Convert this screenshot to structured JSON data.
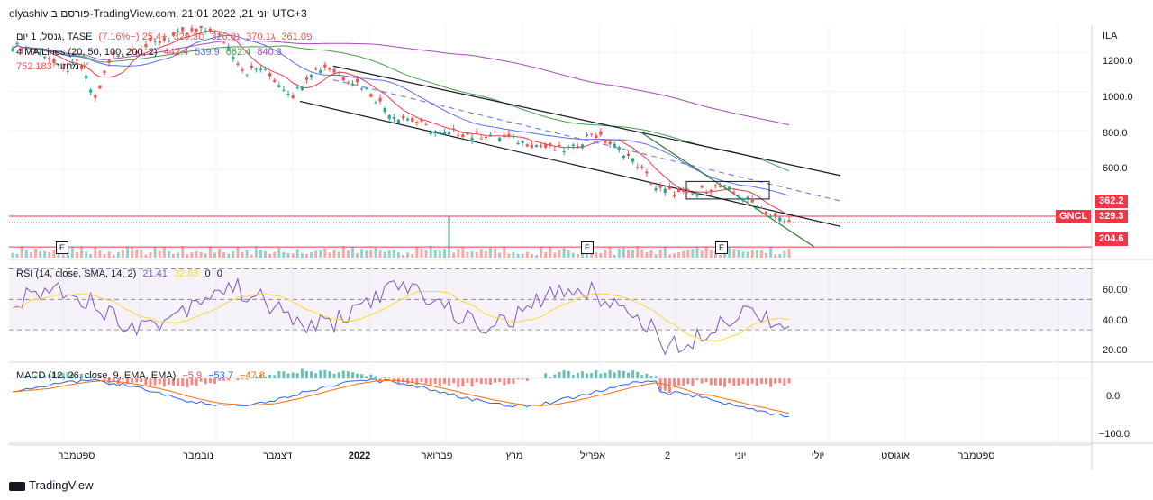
{
  "header": {
    "title": "elyashiv פורסם ב-TradingView.com, 21:01 2022 ,21 יוני UTC+3"
  },
  "legend": {
    "symbol_line": "גנסל, 1 יום, TASE",
    "ohlc": {
      "open": "פ361.0",
      "high": "ג370.1",
      "low": "נ326.0",
      "close": "ס329.3",
      "change": "−25.4 (−7.16%)"
    },
    "ma_title": "4 MA Lines (20, 50, 100, 200, 2)",
    "ma_values": [
      "442.4",
      "539.9",
      "662.4",
      "840.3"
    ],
    "volume_label": "מחזור",
    "volume_value": "752.183K"
  },
  "rsi_legend": {
    "title": "RSI (14, close, SMA, 14, 2)",
    "values": [
      "21.41",
      "32.63",
      "0",
      "0"
    ]
  },
  "macd_legend": {
    "title": "MACD (12, 26, close, 9, EMA, EMA)",
    "values": [
      "−5.9",
      "−53.7",
      "−47.8"
    ]
  },
  "price_axis": {
    "unit": "ILA",
    "ticks": [
      "1200.0",
      "1000.0",
      "800.0",
      "600.0"
    ],
    "tags": [
      {
        "label": "362.2",
        "color": "#f23645"
      },
      {
        "label": "GNCL",
        "color": "#f23645"
      },
      {
        "label": "329.3",
        "color": "#f23645"
      },
      {
        "label": "204.6",
        "color": "#f23645"
      }
    ]
  },
  "rsi_axis": {
    "ticks": [
      "60.00",
      "40.00",
      "20.00"
    ]
  },
  "macd_axis": {
    "ticks": [
      "0.0",
      "−100.0"
    ]
  },
  "time_axis": {
    "ticks": [
      "ספטמבר",
      "נובמבר",
      "דצמבר",
      "2022",
      "פברואר",
      "מרץ",
      "אפריל",
      "2",
      "יוני",
      "יולי",
      "אוגוסט",
      "ספטמבר"
    ]
  },
  "earnings_marker": "E",
  "footer": {
    "brand": "TradingView"
  },
  "colors": {
    "up": "#26a69a",
    "down": "#ef5350",
    "ma20": "#f23645",
    "ma50": "#5b6ef0",
    "ma100": "#43a047",
    "ma200": "#ab47bc",
    "rsi": "#7e57c2",
    "rsi_ma": "#fdd835",
    "macd": "#2962ff",
    "signal": "#ff6d00"
  },
  "chart_data": {
    "type": "candlestick",
    "price_range": [
      150,
      1330
    ],
    "series_sample_close": [
      1240,
      1210,
      1190,
      1100,
      1150,
      960,
      1180,
      1200,
      1230,
      1260,
      1290,
      1300,
      1320,
      1240,
      1100,
      1120,
      1050,
      980,
      1100,
      1130,
      1070,
      1040,
      960,
      880,
      860,
      820,
      780,
      790,
      770,
      780,
      760,
      740,
      720,
      700,
      710,
      790,
      740,
      690,
      610,
      500,
      480,
      470,
      500,
      510,
      470,
      420,
      360,
      329
    ],
    "rsi_range": [
      10,
      75
    ],
    "macd_range": [
      -130,
      30
    ]
  }
}
